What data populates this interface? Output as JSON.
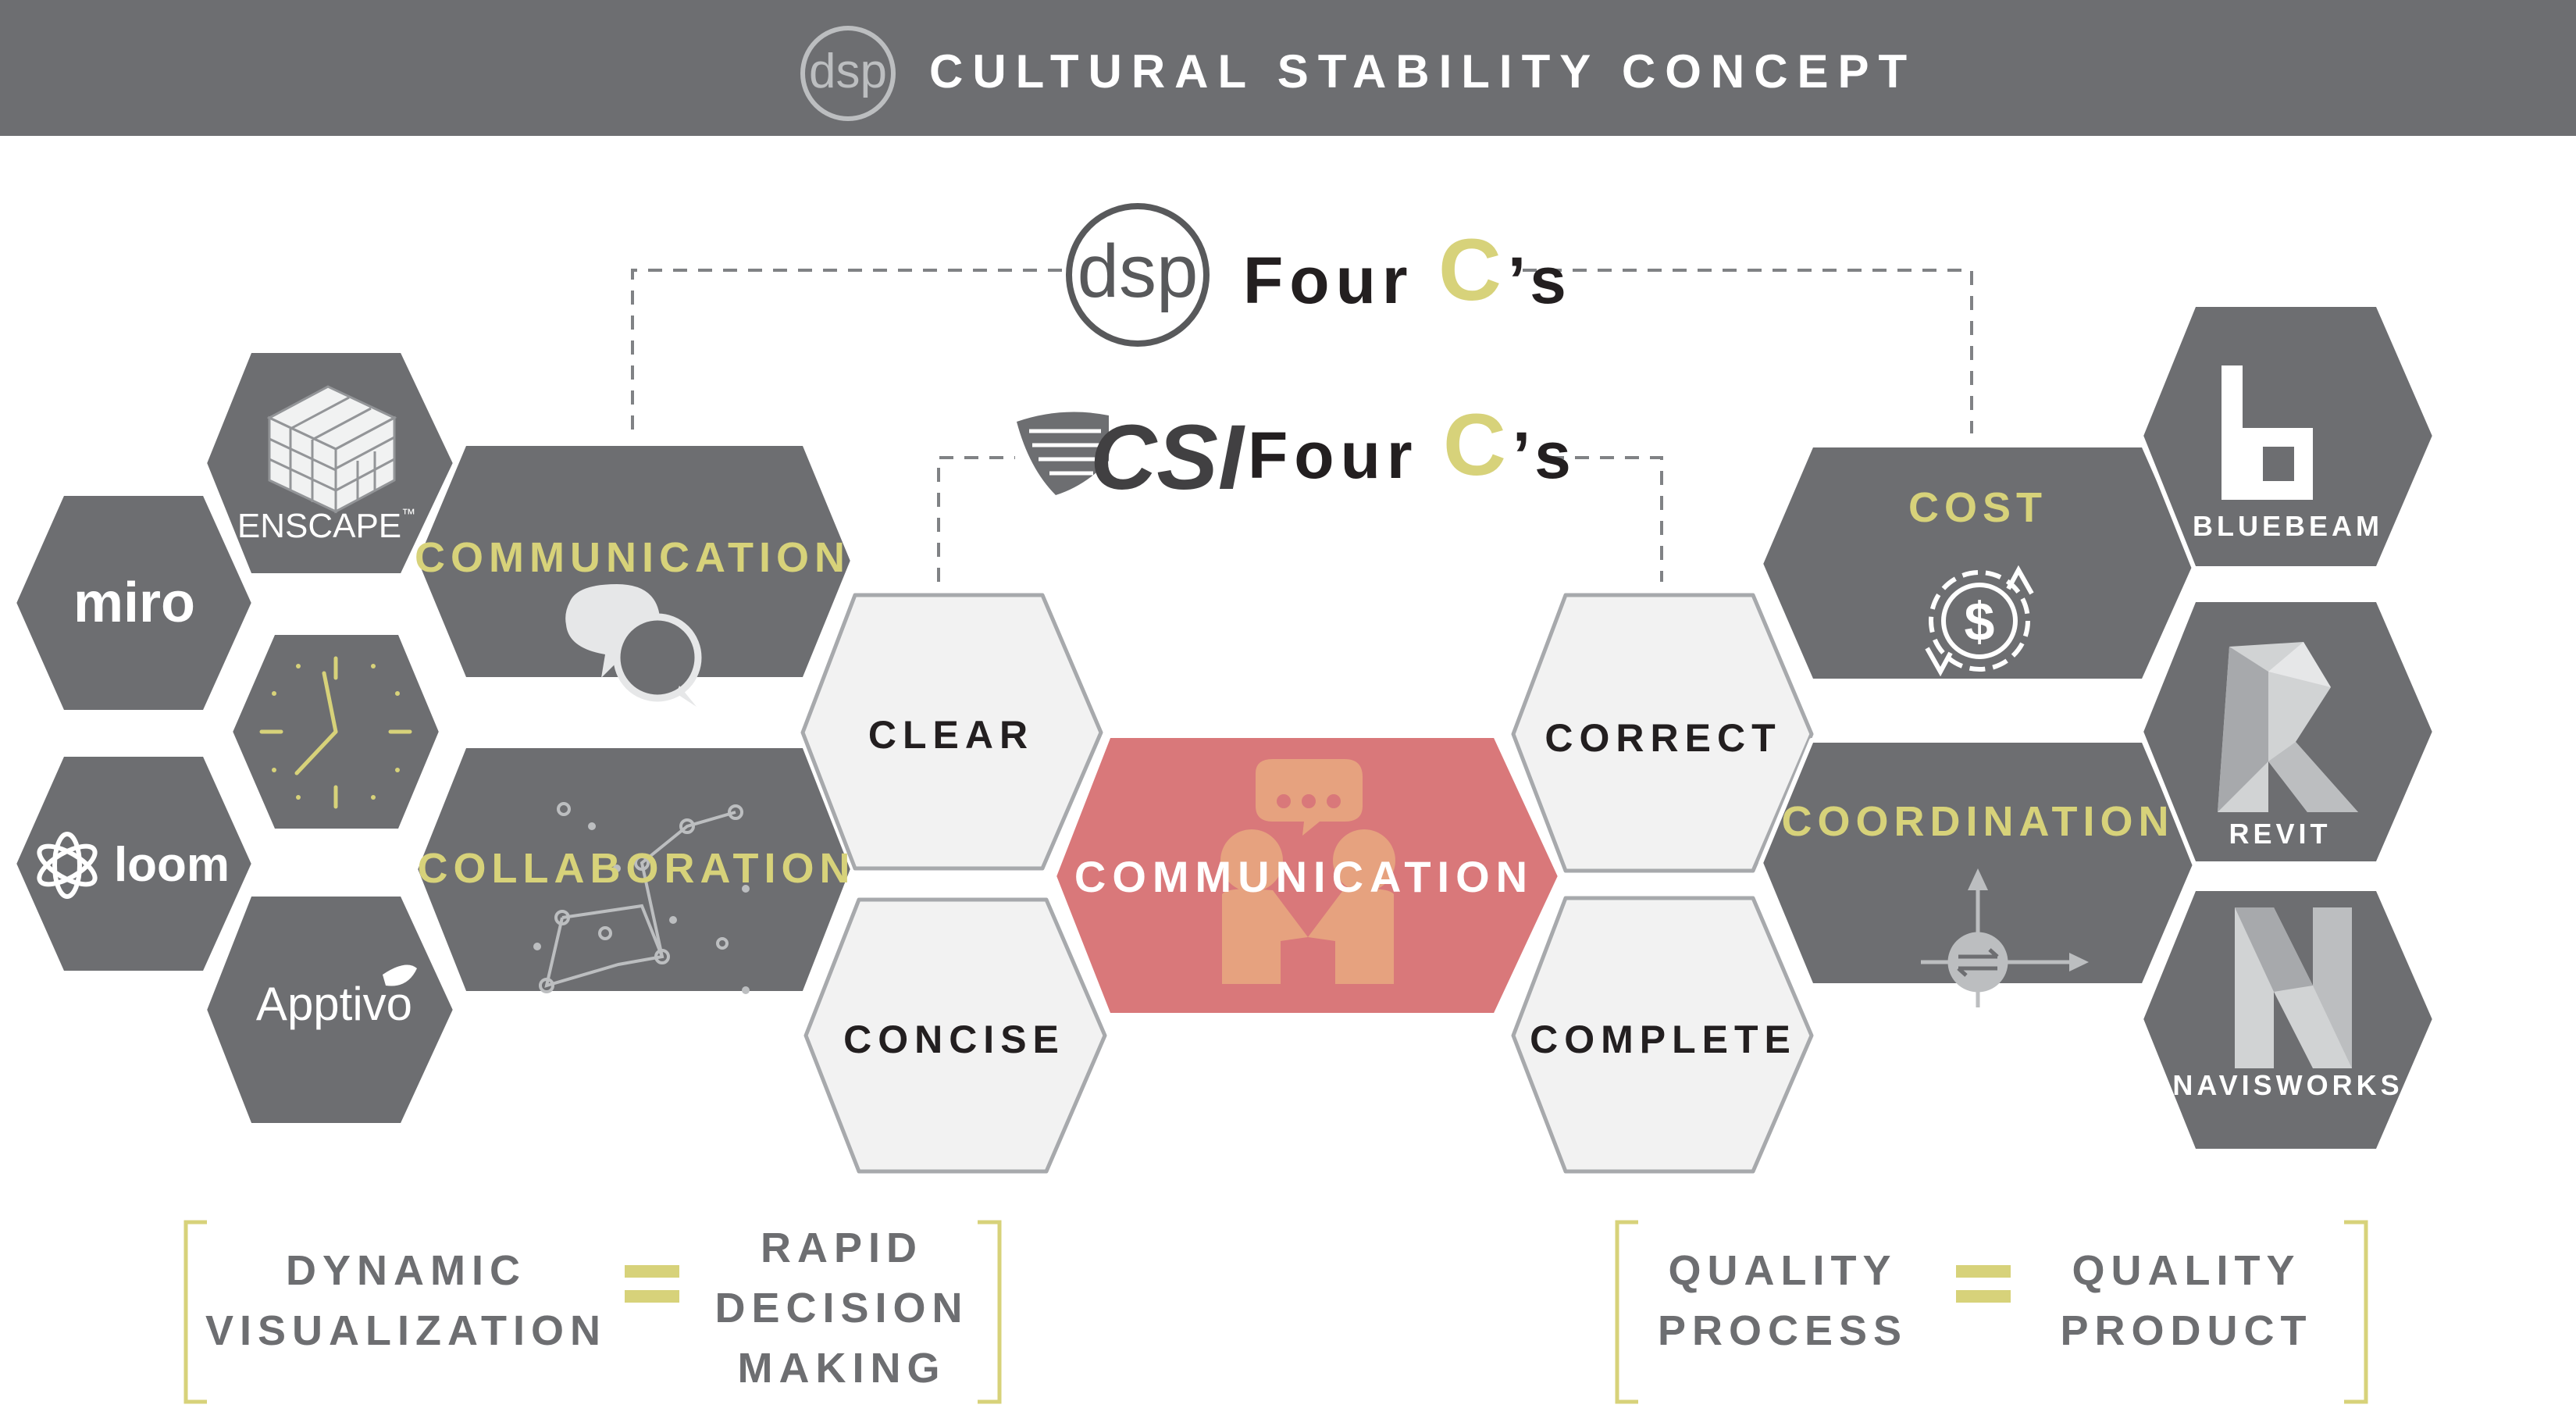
{
  "header": {
    "logo_text": "dsp",
    "title": "CULTURAL STABILITY CONCEPT"
  },
  "four_cs": {
    "dsp": {
      "logo_text": "dsp",
      "label_prefix": "Four ",
      "label_c": "C",
      "label_suffix": "’s"
    },
    "csi": {
      "logo_text": "CSI",
      "label_prefix": "Four ",
      "label_c": "C",
      "label_suffix": "’s"
    }
  },
  "left_tools": {
    "enscape": "ENSCAPE",
    "enscape_tm": "™",
    "miro": "miro",
    "loom": "loom",
    "apptivo": "Apptivo"
  },
  "dsp_cs": {
    "communication": "COMMUNICATION",
    "collaboration": "COLLABORATION",
    "cost": "COST",
    "coordination": "COORDINATION"
  },
  "csi_cs": {
    "clear": "CLEAR",
    "concise": "CONCISE",
    "correct": "CORRECT",
    "complete": "COMPLETE"
  },
  "center": {
    "label": "COMMUNICATION"
  },
  "right_tools": {
    "bluebeam": "BLUEBEAM",
    "revit": "REVIT",
    "navisworks": "NAVISWORKS"
  },
  "equations": {
    "left": {
      "lhs_line1": "DYNAMIC",
      "lhs_line2": "VISUALIZATION",
      "equals": "=",
      "rhs_line1": "RAPID",
      "rhs_line2": "DECISION",
      "rhs_line3": "MAKING"
    },
    "right": {
      "lhs_line1": "QUALITY",
      "lhs_line2": "PROCESS",
      "equals": "=",
      "rhs_line1": "QUALITY",
      "rhs_line2": "PRODUCT"
    }
  },
  "colors": {
    "header_bg": "#6d6e71",
    "hex_dark": "#6d6e71",
    "hex_light_fill": "#f2f2f2",
    "hex_light_stroke": "#a7a9ac",
    "accent_yellow": "#d7d27a",
    "center_red": "#d9787a",
    "center_figure": "#e6a27f",
    "text_dark": "#231f20",
    "text_gray": "#6d6e71",
    "white": "#ffffff"
  }
}
